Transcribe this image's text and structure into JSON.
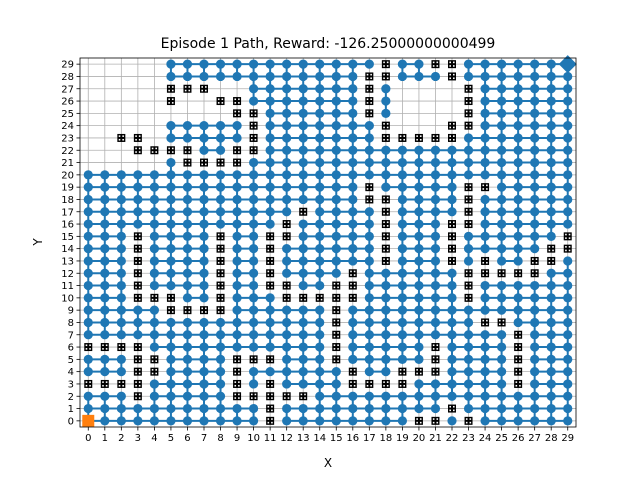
{
  "chart_data": {
    "type": "scatter",
    "title": "Episode 1 Path, Reward: -126.25000000000499",
    "xlabel": "X",
    "ylabel": "Y",
    "xlim": [
      -0.5,
      29.5
    ],
    "ylim": [
      -0.5,
      29.5
    ],
    "xticks": [
      0,
      1,
      2,
      3,
      4,
      5,
      6,
      7,
      8,
      9,
      10,
      11,
      12,
      13,
      14,
      15,
      16,
      17,
      18,
      19,
      20,
      21,
      22,
      23,
      24,
      25,
      26,
      27,
      28,
      29
    ],
    "yticks": [
      0,
      1,
      2,
      3,
      4,
      5,
      6,
      7,
      8,
      9,
      10,
      11,
      12,
      13,
      14,
      15,
      16,
      17,
      18,
      19,
      20,
      21,
      22,
      23,
      24,
      25,
      26,
      27,
      28,
      29
    ],
    "grid": true,
    "colors": {
      "path": "#1f77b4",
      "obstacle": "#000000",
      "start": "#ff7f0e",
      "goal": "#1f77b4"
    },
    "start": [
      0,
      0
    ],
    "goal": [
      29,
      29
    ],
    "obstacles": [
      [
        0,
        3
      ],
      [
        1,
        3
      ],
      [
        2,
        3
      ],
      [
        0,
        6
      ],
      [
        1,
        6
      ],
      [
        2,
        6
      ],
      [
        3,
        2
      ],
      [
        3,
        3
      ],
      [
        3,
        4
      ],
      [
        3,
        5
      ],
      [
        3,
        6
      ],
      [
        3,
        10
      ],
      [
        3,
        11
      ],
      [
        3,
        12
      ],
      [
        3,
        13
      ],
      [
        3,
        14
      ],
      [
        3,
        15
      ],
      [
        3,
        22
      ],
      [
        3,
        23
      ],
      [
        2,
        23
      ],
      [
        4,
        4
      ],
      [
        4,
        5
      ],
      [
        4,
        10
      ],
      [
        4,
        22
      ],
      [
        5,
        9
      ],
      [
        5,
        10
      ],
      [
        5,
        22
      ],
      [
        5,
        26
      ],
      [
        5,
        27
      ],
      [
        6,
        9
      ],
      [
        6,
        21
      ],
      [
        6,
        22
      ],
      [
        6,
        27
      ],
      [
        7,
        9
      ],
      [
        7,
        21
      ],
      [
        7,
        27
      ],
      [
        8,
        9
      ],
      [
        8,
        10
      ],
      [
        8,
        11
      ],
      [
        8,
        12
      ],
      [
        8,
        13
      ],
      [
        8,
        14
      ],
      [
        8,
        15
      ],
      [
        8,
        21
      ],
      [
        8,
        26
      ],
      [
        9,
        2
      ],
      [
        9,
        3
      ],
      [
        9,
        4
      ],
      [
        9,
        5
      ],
      [
        9,
        21
      ],
      [
        9,
        22
      ],
      [
        9,
        25
      ],
      [
        9,
        26
      ],
      [
        10,
        2
      ],
      [
        10,
        5
      ],
      [
        10,
        22
      ],
      [
        10,
        23
      ],
      [
        10,
        24
      ],
      [
        10,
        25
      ],
      [
        11,
        0
      ],
      [
        11,
        1
      ],
      [
        11,
        2
      ],
      [
        11,
        3
      ],
      [
        11,
        5
      ],
      [
        11,
        11
      ],
      [
        11,
        12
      ],
      [
        11,
        13
      ],
      [
        11,
        14
      ],
      [
        11,
        15
      ],
      [
        12,
        2
      ],
      [
        12,
        10
      ],
      [
        12,
        11
      ],
      [
        12,
        15
      ],
      [
        12,
        16
      ],
      [
        13,
        2
      ],
      [
        13,
        10
      ],
      [
        13,
        17
      ],
      [
        14,
        10
      ],
      [
        15,
        5
      ],
      [
        15,
        6
      ],
      [
        15,
        7
      ],
      [
        15,
        8
      ],
      [
        15,
        9
      ],
      [
        15,
        10
      ],
      [
        15,
        11
      ],
      [
        16,
        3
      ],
      [
        16,
        4
      ],
      [
        16,
        10
      ],
      [
        16,
        11
      ],
      [
        16,
        12
      ],
      [
        17,
        3
      ],
      [
        17,
        18
      ],
      [
        17,
        19
      ],
      [
        17,
        25
      ],
      [
        17,
        26
      ],
      [
        17,
        27
      ],
      [
        17,
        28
      ],
      [
        18,
        3
      ],
      [
        18,
        13
      ],
      [
        18,
        14
      ],
      [
        18,
        15
      ],
      [
        18,
        16
      ],
      [
        18,
        17
      ],
      [
        18,
        18
      ],
      [
        18,
        23
      ],
      [
        18,
        24
      ],
      [
        18,
        28
      ],
      [
        18,
        29
      ],
      [
        19,
        3
      ],
      [
        19,
        4
      ],
      [
        19,
        23
      ],
      [
        20,
        0
      ],
      [
        20,
        4
      ],
      [
        20,
        23
      ],
      [
        21,
        0
      ],
      [
        21,
        4
      ],
      [
        21,
        5
      ],
      [
        21,
        6
      ],
      [
        21,
        23
      ],
      [
        21,
        29
      ],
      [
        22,
        1
      ],
      [
        22,
        13
      ],
      [
        22,
        14
      ],
      [
        22,
        15
      ],
      [
        22,
        16
      ],
      [
        22,
        23
      ],
      [
        22,
        24
      ],
      [
        22,
        28
      ],
      [
        22,
        29
      ],
      [
        23,
        0
      ],
      [
        23,
        10
      ],
      [
        23,
        11
      ],
      [
        23,
        12
      ],
      [
        23,
        16
      ],
      [
        23,
        17
      ],
      [
        23,
        18
      ],
      [
        23,
        19
      ],
      [
        23,
        24
      ],
      [
        23,
        25
      ],
      [
        23,
        26
      ],
      [
        23,
        27
      ],
      [
        24,
        8
      ],
      [
        24,
        12
      ],
      [
        24,
        13
      ],
      [
        24,
        19
      ],
      [
        25,
        8
      ],
      [
        25,
        12
      ],
      [
        26,
        3
      ],
      [
        26,
        4
      ],
      [
        26,
        5
      ],
      [
        26,
        6
      ],
      [
        26,
        7
      ],
      [
        26,
        12
      ],
      [
        27,
        12
      ],
      [
        27,
        13
      ],
      [
        28,
        13
      ],
      [
        28,
        14
      ],
      [
        29,
        14
      ],
      [
        29,
        15
      ]
    ]
  }
}
